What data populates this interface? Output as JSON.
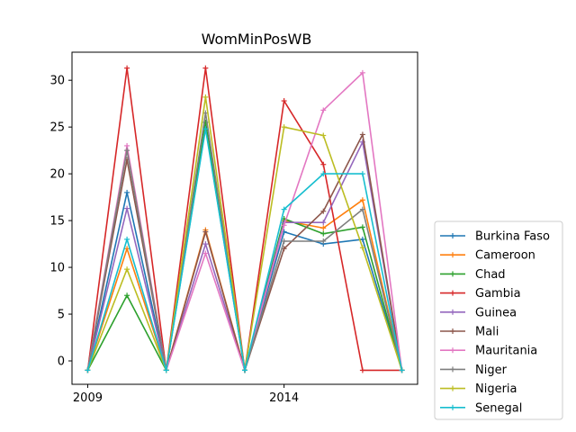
{
  "chart_data": {
    "type": "line",
    "title": "WomMinPosWB",
    "xlabel": "",
    "ylabel": "",
    "x": [
      2009,
      2010,
      2011,
      2012,
      2013,
      2014,
      2015,
      2016,
      2017
    ],
    "xlim": [
      2008.6,
      2017.4
    ],
    "ylim": [
      -2.5,
      33
    ],
    "xticks": [
      2009,
      2014
    ],
    "xtick_labels": [
      "2009",
      "2014"
    ],
    "yticks": [
      0,
      5,
      10,
      15,
      20,
      25,
      30
    ],
    "ytick_labels": [
      "0",
      "5",
      "10",
      "15",
      "20",
      "25",
      "30"
    ],
    "grid": false,
    "legend_position": "outside lower right",
    "series": [
      {
        "name": "Burkina Faso",
        "color": "#1f77b4",
        "values": [
          -1,
          18,
          -1,
          25,
          -1,
          13.8,
          12.5,
          13,
          -1
        ]
      },
      {
        "name": "Cameroon",
        "color": "#ff7f0e",
        "values": [
          -1,
          12,
          -1,
          14,
          -1,
          15,
          14.2,
          17.2,
          -1
        ]
      },
      {
        "name": "Chad",
        "color": "#2ca02c",
        "values": [
          -1,
          7,
          -1,
          25.5,
          -1,
          15.2,
          13.6,
          14.3,
          -1
        ]
      },
      {
        "name": "Gambia",
        "color": "#d62728",
        "values": [
          -1,
          31.3,
          -1,
          31.3,
          -1,
          27.8,
          21,
          -1,
          -1
        ]
      },
      {
        "name": "Guinea",
        "color": "#9467bd",
        "values": [
          -1,
          16.3,
          -1,
          12.5,
          -1,
          14.8,
          14.8,
          23.4,
          -1
        ]
      },
      {
        "name": "Mali",
        "color": "#8c564b",
        "values": [
          -1,
          21.5,
          -1,
          13.8,
          -1,
          12,
          16,
          24.2,
          -1
        ]
      },
      {
        "name": "Mauritania",
        "color": "#e377c2",
        "values": [
          -1,
          23,
          -1,
          11.5,
          -1,
          14.5,
          26.8,
          30.8,
          -1
        ]
      },
      {
        "name": "Niger",
        "color": "#7f7f7f",
        "values": [
          -1,
          22.5,
          -1,
          26.5,
          -1,
          12.8,
          12.8,
          16.2,
          -1
        ]
      },
      {
        "name": "Nigeria",
        "color": "#bcbd22",
        "values": [
          -1,
          9.8,
          -1,
          28.2,
          -1,
          25,
          24.1,
          12.1,
          -1
        ]
      },
      {
        "name": "Senegal",
        "color": "#17becf",
        "values": [
          -1,
          13,
          -1,
          24.8,
          -1,
          16.2,
          20,
          20,
          -1
        ]
      }
    ]
  }
}
